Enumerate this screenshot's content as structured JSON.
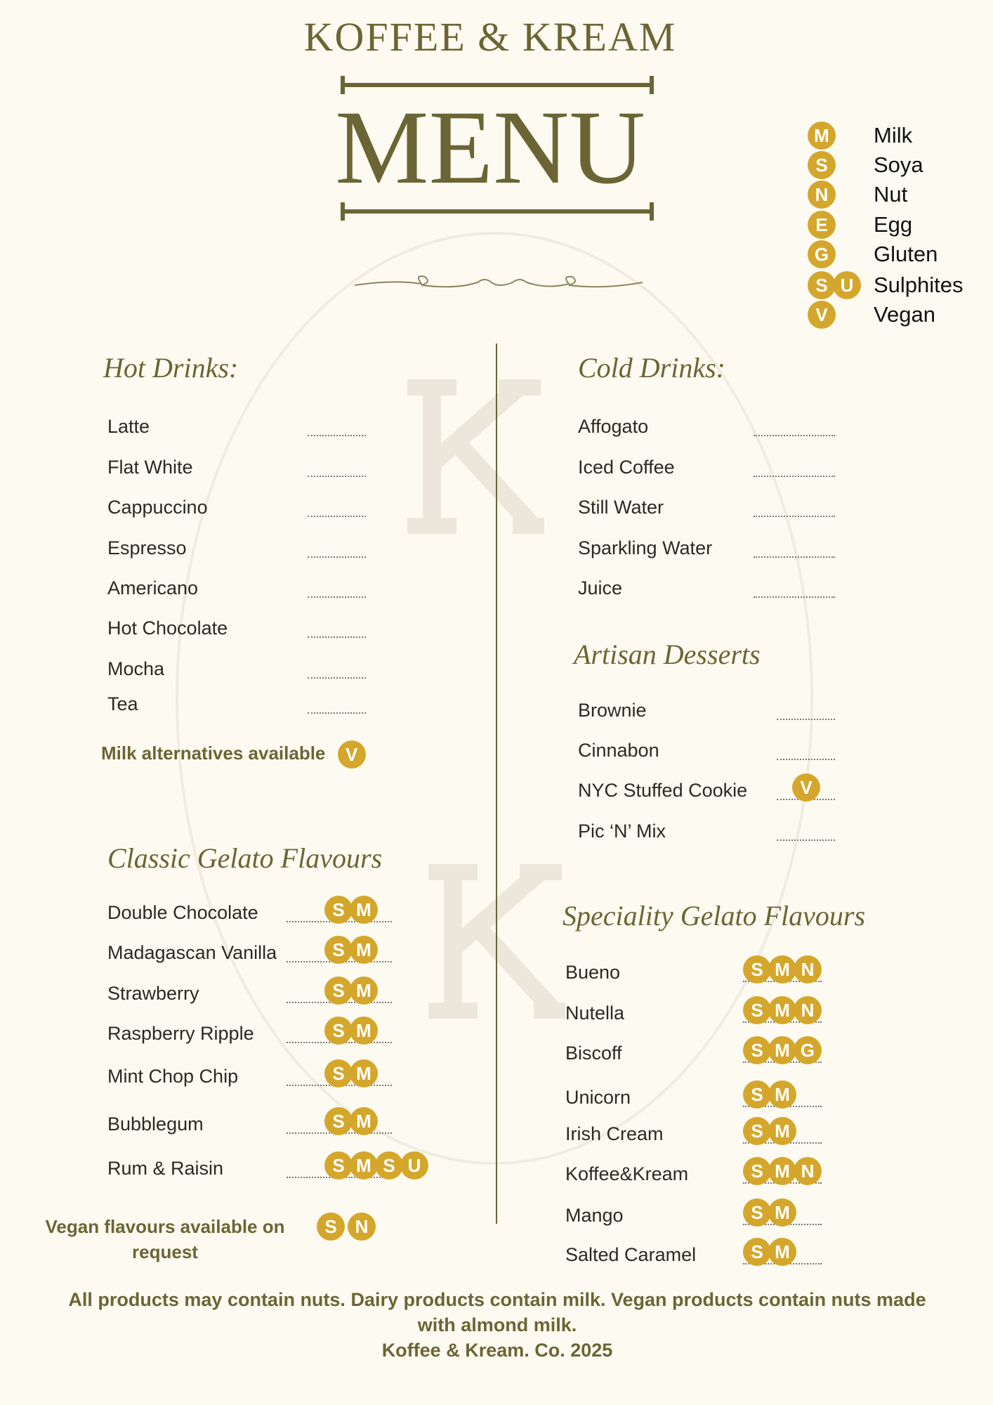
{
  "header": {
    "brand": "KOFFEE & KREAM",
    "title": "MENU"
  },
  "watermark": {
    "letter": "K",
    "text": "KOFFEE & KREAM"
  },
  "legend": [
    {
      "codes": [
        "M"
      ],
      "label": "Milk"
    },
    {
      "codes": [
        "S"
      ],
      "label": "Soya"
    },
    {
      "codes": [
        "N"
      ],
      "label": "Nut"
    },
    {
      "codes": [
        "E"
      ],
      "label": "Egg"
    },
    {
      "codes": [
        "G"
      ],
      "label": "Gluten"
    },
    {
      "codes": [
        "S",
        "U"
      ],
      "label": "Sulphites"
    },
    {
      "codes": [
        "V"
      ],
      "label": "Vegan"
    }
  ],
  "colors": {
    "accent": "#d4a72c",
    "brand": "#6b6535",
    "background": "#fdfbf1"
  },
  "hot_drinks": {
    "title": "Hot Drinks:",
    "items": [
      {
        "name": "Latte"
      },
      {
        "name": "Flat White"
      },
      {
        "name": "Cappuccino"
      },
      {
        "name": "Espresso"
      },
      {
        "name": " Americano"
      },
      {
        "name": "Hot Chocolate"
      },
      {
        "name": "Mocha"
      },
      {
        "name": "Tea"
      }
    ],
    "note": "Milk alternatives available",
    "note_codes": [
      "V"
    ]
  },
  "cold_drinks": {
    "title": "Cold Drinks:",
    "items": [
      {
        "name": "Affogato"
      },
      {
        "name": "Iced Coffee"
      },
      {
        "name": "Still Water"
      },
      {
        "name": "Sparkling Water"
      },
      {
        "name": "Juice"
      }
    ]
  },
  "desserts": {
    "title": "Artisan Desserts",
    "items": [
      {
        "name": "Brownie",
        "codes": []
      },
      {
        "name": "Cinnabon",
        "codes": []
      },
      {
        "name": "NYC Stuffed Cookie",
        "codes": [
          "V"
        ]
      },
      {
        "name": "Pic ‘N’ Mix",
        "codes": []
      }
    ]
  },
  "classic_gelato": {
    "title": "Classic Gelato Flavours",
    "items": [
      {
        "name": "Double Chocolate",
        "codes": [
          "S",
          "M"
        ]
      },
      {
        "name": "Madagascan Vanilla",
        "codes": [
          "S",
          "M"
        ]
      },
      {
        "name": "Strawberry",
        "codes": [
          "S",
          "M"
        ]
      },
      {
        "name": "Raspberry Ripple",
        "codes": [
          "S",
          "M"
        ]
      },
      {
        "name": "Mint Chop Chip",
        "codes": [
          "S",
          "M"
        ]
      },
      {
        "name": "Bubblegum",
        "codes": [
          "S",
          "M"
        ]
      },
      {
        "name": "Rum & Raisin",
        "codes": [
          "S",
          "M",
          "S",
          "U"
        ]
      }
    ],
    "note_line1": "Vegan flavours available on",
    "note_line2": "request",
    "note_codes": [
      "S",
      "N"
    ]
  },
  "speciality_gelato": {
    "title": "Speciality Gelato Flavours",
    "items": [
      {
        "name": "Bueno",
        "codes": [
          "S",
          "M",
          "N"
        ]
      },
      {
        "name": "Nutella",
        "codes": [
          "S",
          "M",
          "N"
        ]
      },
      {
        "name": "Biscoff",
        "codes": [
          "S",
          "M",
          "G"
        ]
      },
      {
        "name": "Unicorn",
        "codes": [
          "S",
          "M"
        ]
      },
      {
        "name": "Irish Cream",
        "codes": [
          "S",
          "M"
        ]
      },
      {
        "name": "Koffee&Kream",
        "codes": [
          "S",
          "M",
          "N"
        ]
      },
      {
        "name": " Mango",
        "codes": [
          "S",
          "M"
        ]
      },
      {
        "name": "Salted Caramel",
        "codes": [
          "S",
          "M"
        ]
      }
    ]
  },
  "footer": {
    "line1": "All products may contain nuts. Dairy products contain milk. Vegan products contain nuts made",
    "line2": "with almond milk.",
    "line3": "Koffee & Kream. Co. 2025"
  }
}
